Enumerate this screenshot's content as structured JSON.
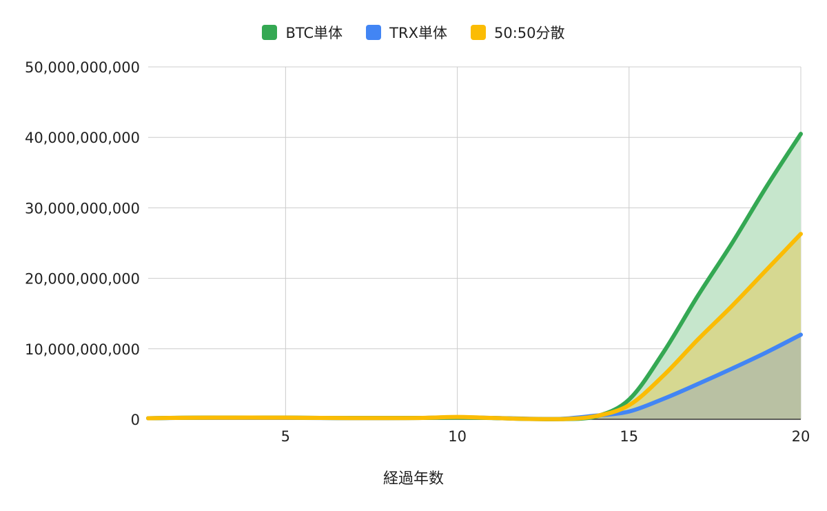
{
  "chart_data": {
    "type": "area",
    "title": "",
    "xlabel": "経過年数",
    "ylabel": "",
    "xlim": [
      1,
      20
    ],
    "ylim": [
      0,
      50000000000
    ],
    "x_ticks": [
      5,
      10,
      15,
      20
    ],
    "x_tick_labels": [
      "5",
      "10",
      "15",
      "20"
    ],
    "y_ticks": [
      0,
      10000000000,
      20000000000,
      30000000000,
      40000000000,
      50000000000
    ],
    "y_tick_labels": [
      "0",
      "10,000,000,000",
      "20,000,000,000",
      "30,000,000,000",
      "40,000,000,000",
      "50,000,000,000"
    ],
    "grid": true,
    "legend_position": "top",
    "x": [
      1,
      2,
      3,
      4,
      5,
      6,
      7,
      8,
      9,
      10,
      11,
      12,
      13,
      14,
      15,
      16,
      17,
      18,
      19,
      20
    ],
    "series": [
      {
        "name": "BTC単体",
        "color": "#34a853",
        "fill": "#c6e6cc",
        "values": [
          150000000,
          220000000,
          240000000,
          250000000,
          240000000,
          200000000,
          180000000,
          180000000,
          200000000,
          250000000,
          180000000,
          50000000,
          20000000,
          350000000,
          2800000000,
          9500000000,
          17500000000,
          25000000000,
          33000000000,
          40500000000
        ]
      },
      {
        "name": "TRX単体",
        "color": "#4285f4",
        "fill": "#b9c1a3",
        "values": [
          150000000,
          200000000,
          220000000,
          230000000,
          220000000,
          180000000,
          170000000,
          170000000,
          200000000,
          280000000,
          200000000,
          80000000,
          50000000,
          500000000,
          1100000000,
          2900000000,
          5000000000,
          7200000000,
          9500000000,
          12000000000
        ]
      },
      {
        "name": "50:50分散",
        "color": "#fbbc04",
        "fill": "#d6d891",
        "values": [
          150000000,
          210000000,
          230000000,
          240000000,
          230000000,
          190000000,
          175000000,
          175000000,
          200000000,
          330000000,
          190000000,
          60000000,
          30000000,
          420000000,
          2000000000,
          6200000000,
          11300000000,
          16100000000,
          21200000000,
          26300000000
        ]
      }
    ]
  }
}
